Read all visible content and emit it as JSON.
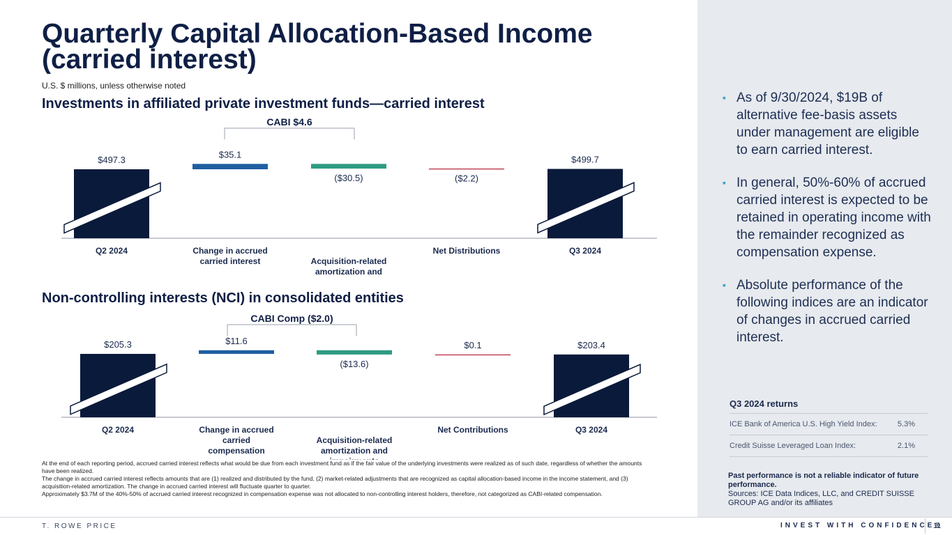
{
  "title": "Quarterly Capital Allocation-Based Income (carried interest)",
  "subtitle": "U.S. $ millions, unless otherwise noted",
  "colors": {
    "navy": "#0a1a3a",
    "blue": "#1f5fa0",
    "teal": "#2e9b82",
    "red": "#b3223a"
  },
  "chart_data": [
    {
      "type": "bar",
      "subtype": "waterfall",
      "title": "Investments in affiliated private investment funds—carried interest",
      "bracket_label": "CABI  $4.6",
      "categories": [
        "Q2 2024",
        "Change in accrued carried interest",
        "Acquisition-related amortization and impairments",
        "Net Distributions",
        "Q3 2024"
      ],
      "values": [
        497.3,
        35.1,
        -30.5,
        -2.2,
        499.7
      ],
      "value_labels": [
        "$497.3",
        "$35.1",
        "($30.5)",
        "($2.2)",
        "$499.7"
      ],
      "bar_kinds": [
        "total",
        "increase",
        "decrease",
        "decrease",
        "total"
      ],
      "axis_break": true
    },
    {
      "type": "bar",
      "subtype": "waterfall",
      "title": "Non-controlling interests (NCI) in consolidated entities",
      "bracket_label": "CABI Comp ($2.0)",
      "categories": [
        "Q2 2024",
        "Change in accrued carried compensation",
        "Acquisition-related amortization and impairments",
        "Net Contributions",
        "Q3 2024"
      ],
      "values": [
        205.3,
        11.6,
        -13.6,
        0.1,
        203.4
      ],
      "value_labels": [
        "$205.3",
        "$11.6",
        "($13.6)",
        "$0.1",
        "$203.4"
      ],
      "bar_kinds": [
        "total",
        "increase",
        "decrease",
        "increase",
        "total"
      ],
      "axis_break": true
    }
  ],
  "bullets": [
    "As of 9/30/2024, $19B of alternative fee-basis assets under management are eligible to earn carried interest.",
    "In general, 50%-60% of accrued carried interest is expected to be retained in operating income with the remainder recognized as compensation expense.",
    "Absolute performance of the following indices are an indicator of changes in accrued carried interest."
  ],
  "returns": {
    "title": "Q3 2024 returns",
    "rows": [
      {
        "label": "ICE Bank of America U.S. High Yield Index:",
        "value": "5.3%"
      },
      {
        "label": "Credit Suisse Leveraged Loan Index:",
        "value": "2.1%"
      }
    ]
  },
  "disclaimer": {
    "bold": "Past performance is not a reliable indicator of future performance.",
    "sources": "Sources: ICE Data Indices, LLC, and CREDIT SUISSE GROUP AG and/or its affiliates"
  },
  "footnotes": [
    "At the end of each reporting period, accrued carried interest reflects what would be due from each investment fund as if the fair value of the underlying investments were realized as of such date, regardless of whether the amounts have been realized.",
    "The change in accrued carried interest reflects amounts that are (1) realized and distributed by the fund, (2) market-related adjustments that are recognized as capital allocation-based income in the income statement, and (3) acquisition-related amortization. The change in accrued carried interest will fluctuate quarter to quarter.",
    "Approximately $3.7M of the 40%-50% of accrued carried interest recognized in compensation expense was not allocated to non-controlling interest holders, therefore, not categorized as CABI-related compensation."
  ],
  "footer": {
    "brand": "T. ROWE PRICE",
    "tagline": "INVEST WITH CONFIDENCE®",
    "page": "11"
  }
}
